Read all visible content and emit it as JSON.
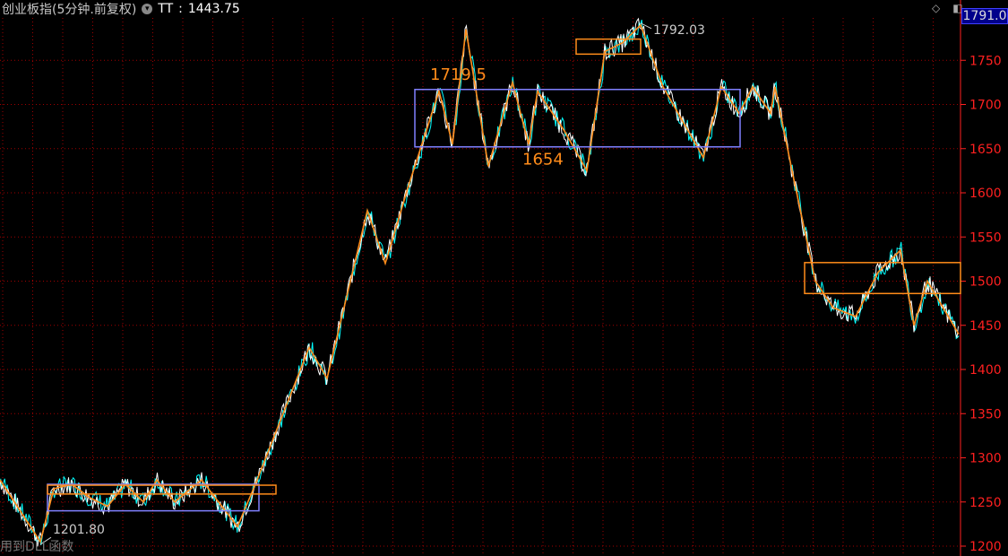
{
  "header": {
    "title": "创业板指(5分钟.前复权)",
    "indicator": "TT",
    "indicator_value": "1443.75"
  },
  "footer": {
    "note": "用到DLL函数"
  },
  "current_price_label": "1791.0",
  "chart_data": {
    "type": "line",
    "title": "创业板指(5分钟.前复权)",
    "ylim": [
      1195,
      1800
    ],
    "yticks": [
      1200,
      1250,
      1300,
      1350,
      1400,
      1450,
      1500,
      1550,
      1600,
      1650,
      1700,
      1750
    ],
    "grid": true,
    "colors": {
      "price": "#ffffff",
      "price_alt": "#00ffff",
      "zigzag": "#ff8c1a",
      "box_purple": "#8080ff",
      "box_orange": "#ff8c1a",
      "axis": "#ff2020",
      "grid": "#a00000"
    },
    "zigzag": [
      [
        0,
        1275
      ],
      [
        45,
        1205
      ],
      [
        60,
        1265
      ],
      [
        80,
        1270
      ],
      [
        100,
        1255
      ],
      [
        120,
        1245
      ],
      [
        140,
        1270
      ],
      [
        160,
        1250
      ],
      [
        175,
        1275
      ],
      [
        195,
        1250
      ],
      [
        225,
        1275
      ],
      [
        265,
        1222
      ],
      [
        285,
        1270
      ],
      [
        345,
        1425
      ],
      [
        365,
        1390
      ],
      [
        410,
        1580
      ],
      [
        430,
        1520
      ],
      [
        455,
        1605
      ],
      [
        490,
        1715
      ],
      [
        505,
        1655
      ],
      [
        520,
        1785
      ],
      [
        545,
        1630
      ],
      [
        572,
        1725
      ],
      [
        590,
        1655
      ],
      [
        600,
        1715
      ],
      [
        630,
        1670
      ],
      [
        655,
        1625
      ],
      [
        675,
        1760
      ],
      [
        695,
        1770
      ],
      [
        715,
        1790
      ],
      [
        740,
        1720
      ],
      [
        785,
        1640
      ],
      [
        805,
        1720
      ],
      [
        825,
        1690
      ],
      [
        840,
        1720
      ],
      [
        860,
        1690
      ],
      [
        865,
        1720
      ],
      [
        885,
        1620
      ],
      [
        910,
        1500
      ],
      [
        930,
        1470
      ],
      [
        955,
        1460
      ],
      [
        980,
        1510
      ],
      [
        1005,
        1535
      ],
      [
        1020,
        1450
      ],
      [
        1035,
        1500
      ],
      [
        1070,
        1440
      ]
    ],
    "boxes": [
      {
        "color": "purple",
        "x": [
          53,
          289
        ],
        "y": [
          1240,
          1270
        ]
      },
      {
        "color": "orange",
        "x": [
          53,
          308
        ],
        "y": [
          1259,
          1269
        ]
      },
      {
        "color": "purple",
        "x": [
          463,
          826
        ],
        "y": [
          1652,
          1717
        ]
      },
      {
        "color": "orange",
        "x": [
          643,
          715
        ],
        "y": [
          1757,
          1774
        ]
      },
      {
        "color": "orange",
        "x": [
          898,
          1072
        ],
        "y": [
          1486,
          1521
        ]
      }
    ],
    "annotations": [
      {
        "text": "1792.03",
        "x": 715,
        "y": 1792.03,
        "style": "extreme"
      },
      {
        "text": "1201.80",
        "x": 45,
        "y": 1201.8,
        "style": "extreme"
      },
      {
        "text": "1719.5",
        "x": 480,
        "y": 1728,
        "style": "level"
      },
      {
        "text": "1654",
        "x": 583,
        "y": 1632,
        "style": "level"
      }
    ]
  }
}
